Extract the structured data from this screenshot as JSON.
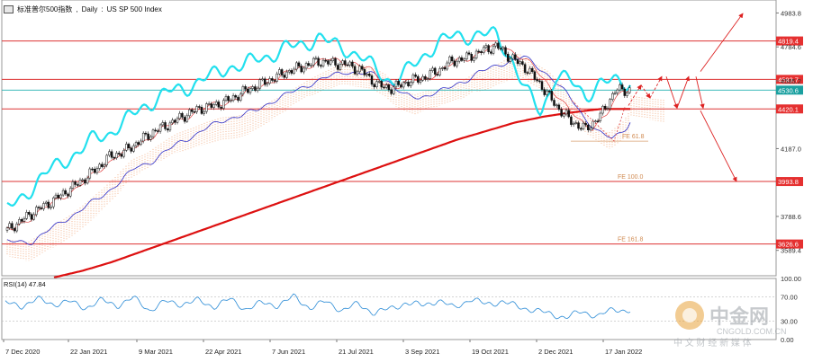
{
  "header": {
    "symbol_cn": "标准普尔500指数",
    "timeframe": "Daily",
    "symbol": "US SP 500 Index"
  },
  "rsi": {
    "label": "RSI(14) 47.84",
    "levels": [
      100.0,
      70.0,
      30.0,
      0.0
    ]
  },
  "watermark": {
    "brand": "中金网",
    "domain": "CNGOLD.COM.CN",
    "tagline": "中 文 财 经 新 媒 体"
  },
  "colors": {
    "candle_up": "#111111",
    "candle_down": "#111111",
    "ma_fast": "#e04040",
    "ma_slow": "#3030c8",
    "ma_long": "#dd1111",
    "bb_upper": "#22e0ee",
    "cloud": "#f2a070",
    "hline": "#dd3333",
    "hline_teal": "#22b0b0",
    "fe_line": "#d9a070",
    "rsi": "#2a8bd6",
    "tag_red": "#e53030",
    "tag_teal": "#1aa0a0"
  },
  "chart_data": {
    "type": "line",
    "title": "标准普尔500指数, Daily: US SP 500 Index",
    "ylim": [
      3440,
      5060
    ],
    "y_ticks": [
      4983.8,
      4784.6,
      4585.2,
      4187.0,
      3788.6,
      3589.4
    ],
    "x_ticks": [
      "7 Dec 2020",
      "22 Jan 2021",
      "9 Mar 2021",
      "22 Apr 2021",
      "7 Jun 2021",
      "21 Jul 2021",
      "3 Sep 2021",
      "19 Oct 2021",
      "2 Dec 2021",
      "17 Jan 2022"
    ],
    "levels": [
      {
        "value": 4819.4,
        "label": "4819.4",
        "color": "red"
      },
      {
        "value": 4593.7,
        "label": "4593.7",
        "color": "red"
      },
      {
        "value": 4530.6,
        "label": "4530.6",
        "color": "teal"
      },
      {
        "value": 4420.1,
        "label": "4420.1",
        "color": "red"
      },
      {
        "value": 3993.8,
        "label": "3993.8",
        "color": "red"
      },
      {
        "value": 3626.6,
        "label": "3626.6",
        "color": "red"
      }
    ],
    "fibonacci_expansion": [
      {
        "label": "FE 61.8",
        "value": 4231
      },
      {
        "label": "FE 100.0",
        "value": 3993.8
      },
      {
        "label": "FE 161.8",
        "value": 3626.6
      }
    ],
    "series": [
      {
        "kind": "ma_long",
        "values": [
          3430,
          3470,
          3520,
          3580,
          3640,
          3700,
          3760,
          3820,
          3880,
          3940,
          4000,
          4060,
          4120,
          4180,
          4240,
          4290,
          4340,
          4375,
          4400,
          4420,
          4420
        ]
      },
      {
        "kind": "close",
        "values": [
          3700,
          3760,
          3820,
          3870,
          3930,
          3990,
          4060,
          4140,
          4170,
          4230,
          4290,
          4330,
          4380,
          4420,
          4440,
          4470,
          4520,
          4560,
          4600,
          4640,
          4670,
          4700,
          4690,
          4680,
          4640,
          4560,
          4540,
          4580,
          4600,
          4640,
          4700,
          4720,
          4760,
          4790,
          4720,
          4660,
          4560,
          4440,
          4350,
          4300,
          4380,
          4530,
          4530
        ]
      },
      {
        "kind": "bb_upper",
        "values": [
          3800,
          3870,
          3960,
          4040,
          4100,
          4150,
          4230,
          4260,
          4320,
          4400,
          4450,
          4500,
          4520,
          4560,
          4600,
          4650,
          4650,
          4700,
          4720,
          4760,
          4780,
          4820,
          4780,
          4750,
          4700,
          4620,
          4560,
          4620,
          4700,
          4790,
          4820,
          4830,
          4840,
          4830,
          4700,
          4500,
          4380,
          4600,
          4560,
          4480,
          4550,
          4560,
          4560
        ]
      },
      {
        "kind": "rsi",
        "values": [
          60,
          55,
          66,
          58,
          62,
          52,
          64,
          56,
          68,
          48,
          62,
          58,
          64,
          54,
          66,
          50,
          60,
          56,
          70,
          52,
          62,
          48,
          58,
          44,
          50,
          60,
          56,
          64,
          52,
          66,
          58,
          62,
          54,
          48,
          42,
          36,
          46,
          38,
          50,
          47
        ]
      }
    ]
  }
}
